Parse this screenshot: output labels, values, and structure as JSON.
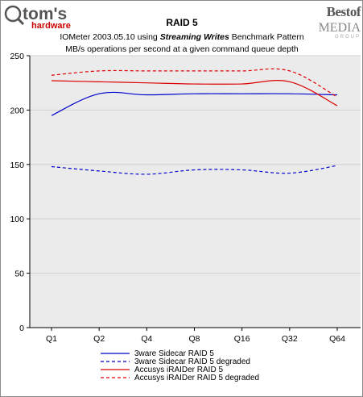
{
  "brand": {
    "left_logo_main": "tom's",
    "left_logo_sub": "hardware",
    "right_logo_main": "Bestof",
    "right_logo_sub": "MEDIA",
    "right_logo_small": "GROUP"
  },
  "colors": {
    "plot_bg": "#ebebeb",
    "grid": "#d0d0d0",
    "blue": "#0000cc",
    "red": "#dd0000",
    "logo_gray": "#555555",
    "logo_red": "#cc0000"
  },
  "chart_data": {
    "type": "line",
    "title": "RAID 5",
    "subtitle_line1_pre": "IOMeter 2003.05.10 using ",
    "subtitle_line1_bold": "Streaming Writes",
    "subtitle_line1_post": " Benchmark Pattern",
    "subtitle_line2": "MB/s operations per second at a given command queue depth",
    "categories": [
      "Q1",
      "Q2",
      "Q4",
      "Q8",
      "Q16",
      "Q32",
      "Q64"
    ],
    "ylim": [
      0,
      250
    ],
    "yticks": [
      0,
      50,
      100,
      150,
      200,
      250
    ],
    "grid": true,
    "legend_position": "bottom",
    "series": [
      {
        "name": "3ware Sidecar RAID 5",
        "color": "#0000cc",
        "dash": false,
        "values": [
          195,
          215,
          214,
          215,
          215,
          215,
          214
        ]
      },
      {
        "name": "3ware Sidecar RAID 5 degraded",
        "color": "#0000cc",
        "dash": true,
        "values": [
          148,
          144,
          141,
          145,
          145,
          142,
          149
        ]
      },
      {
        "name": "Accusys iRAIDer RAID 5",
        "color": "#dd0000",
        "dash": false,
        "values": [
          227,
          226,
          225,
          224,
          224,
          226,
          204
        ]
      },
      {
        "name": "Accusys iRAIDer RAID 5 degraded",
        "color": "#dd0000",
        "dash": true,
        "values": [
          232,
          236,
          236,
          236,
          236,
          236,
          212
        ]
      }
    ]
  }
}
